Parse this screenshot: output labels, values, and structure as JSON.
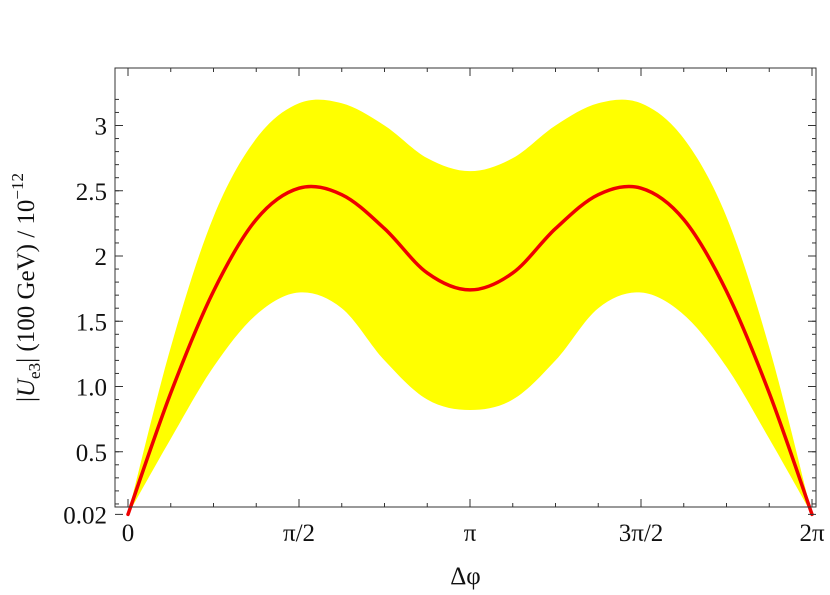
{
  "chart_data": {
    "type": "area",
    "title": "",
    "xlabel": "Δφ",
    "ylabel": "|U_e3| (100 GeV) / 10^-12",
    "xlim": [
      0,
      6.2832
    ],
    "ylim": [
      0,
      3.3
    ],
    "grid": false,
    "x_tick_labels": [
      "0",
      "π/2",
      "π",
      "3π/2",
      "2π"
    ],
    "x_tick_values": [
      0,
      1.5708,
      3.1416,
      4.7124,
      6.2832
    ],
    "y_tick_labels": [
      "0.02",
      "0.5",
      "1.0",
      "1.5",
      "2",
      "2.5",
      "3"
    ],
    "y_tick_values": [
      0.02,
      0.5,
      1.0,
      1.5,
      2.0,
      2.5,
      3.0
    ],
    "colors": {
      "band": "#ffff00",
      "line": "#ee0000",
      "axis": "#333333"
    },
    "series": [
      {
        "name": "",
        "style": "line",
        "x": [
          0,
          0.3927,
          0.7854,
          1.1781,
          1.5708,
          1.9635,
          2.3562,
          2.7489,
          3.1416,
          3.5343,
          3.927,
          4.3197,
          4.7124,
          5.1051,
          5.4978,
          5.8905,
          6.2832
        ],
        "y": [
          0.02,
          0.95,
          1.73,
          2.28,
          2.52,
          2.47,
          2.21,
          1.87,
          1.74,
          1.87,
          2.21,
          2.47,
          2.52,
          2.28,
          1.73,
          0.95,
          0.02
        ]
      },
      {
        "name": "",
        "style": "band",
        "x": [
          0,
          0.3927,
          0.7854,
          1.1781,
          1.5708,
          1.9635,
          2.3562,
          2.7489,
          3.1416,
          3.5343,
          3.927,
          4.3197,
          4.7124,
          5.1051,
          5.4978,
          5.8905,
          6.2832
        ],
        "upper": [
          0.02,
          1.3,
          2.3,
          2.9,
          3.17,
          3.17,
          3.0,
          2.75,
          2.65,
          2.75,
          3.0,
          3.17,
          3.17,
          2.9,
          2.3,
          1.3,
          0.02
        ],
        "lower": [
          0.02,
          0.6,
          1.15,
          1.55,
          1.72,
          1.6,
          1.2,
          0.9,
          0.82,
          0.9,
          1.2,
          1.6,
          1.72,
          1.55,
          1.15,
          0.6,
          0.02
        ]
      }
    ]
  }
}
